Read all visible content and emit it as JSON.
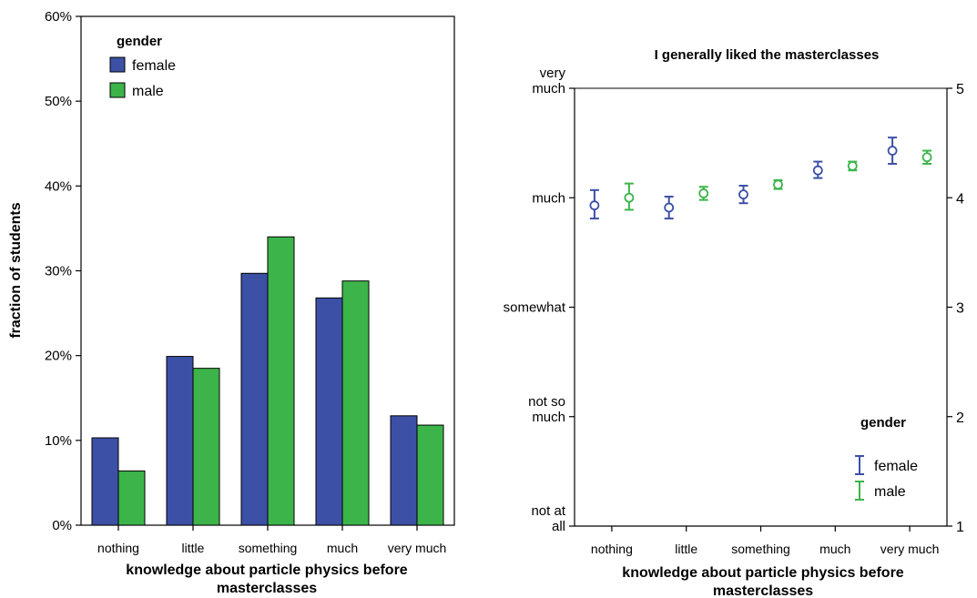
{
  "chart_data": [
    {
      "type": "bar",
      "title": "",
      "xlabel_lines": [
        "knowledge about particle physics before",
        "masterclasses"
      ],
      "ylabel": "fraction of students",
      "categories": [
        "nothing",
        "little",
        "something",
        "much",
        "very much"
      ],
      "ylim": [
        0,
        60
      ],
      "yticks": [
        "0%",
        "10%",
        "20%",
        "30%",
        "40%",
        "50%",
        "60%"
      ],
      "legend_title": "gender",
      "legend_position": "top-left",
      "grid": false,
      "series": [
        {
          "name": "female",
          "color": "#3c50a6",
          "values": [
            10.3,
            19.9,
            29.7,
            26.8,
            12.9
          ]
        },
        {
          "name": "male",
          "color": "#3cb44a",
          "values": [
            6.4,
            18.5,
            34.0,
            28.8,
            11.8
          ]
        }
      ]
    },
    {
      "type": "errorbar",
      "title": "I generally liked the masterclasses",
      "xlabel_lines": [
        "knowledge about particle physics before",
        "masterclasses"
      ],
      "categories": [
        "nothing",
        "little",
        "something",
        "much",
        "very much"
      ],
      "ylim": [
        1,
        5
      ],
      "left_tick_labels": [
        {
          "value": 5,
          "lines": [
            "very",
            "much"
          ]
        },
        {
          "value": 4,
          "lines": [
            "much"
          ]
        },
        {
          "value": 3,
          "lines": [
            "somewhat"
          ]
        },
        {
          "value": 2,
          "lines": [
            "not so",
            "much"
          ]
        },
        {
          "value": 1,
          "lines": [
            "not at",
            "all"
          ]
        }
      ],
      "right_tick_labels": [
        "1",
        "2",
        "3",
        "4",
        "5"
      ],
      "legend_title": "gender",
      "legend_position": "bottom-right",
      "grid": false,
      "series": [
        {
          "name": "female",
          "color": "#3c50a6",
          "values": [
            3.93,
            3.91,
            4.03,
            4.25,
            4.43
          ],
          "lower": [
            3.81,
            3.81,
            3.95,
            4.18,
            4.31
          ],
          "upper": [
            4.07,
            4.01,
            4.11,
            4.33,
            4.55
          ]
        },
        {
          "name": "male",
          "color": "#3cb44a",
          "values": [
            4.0,
            4.04,
            4.12,
            4.29,
            4.37
          ],
          "lower": [
            3.89,
            3.98,
            4.08,
            4.25,
            4.31
          ],
          "upper": [
            4.13,
            4.1,
            4.16,
            4.33,
            4.43
          ]
        }
      ]
    }
  ]
}
